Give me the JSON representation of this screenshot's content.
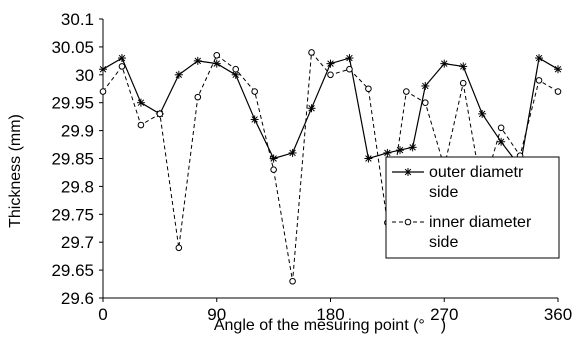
{
  "chart_data": {
    "type": "line",
    "title": "",
    "xlabel": "Angle of the mesuring point (°　)",
    "ylabel": "Thickness (mm)",
    "xlim": [
      0,
      360
    ],
    "ylim": [
      29.6,
      30.1
    ],
    "xticks": [
      "0",
      "90",
      "180",
      "270",
      "360"
    ],
    "yticks": [
      "29.6",
      "29.65",
      "29.7",
      "29.75",
      "29.8",
      "29.85",
      "29.9",
      "29.95",
      "30",
      "30.05",
      "30.1"
    ],
    "grid": false,
    "legend_position": "lower-right",
    "series": [
      {
        "name": "outer diametr side",
        "line_style": "solid",
        "marker": "asterisk",
        "color": "#000000",
        "x": [
          0,
          15,
          30,
          45,
          60,
          75,
          90,
          105,
          120,
          135,
          150,
          165,
          180,
          195,
          210,
          225,
          235,
          245,
          255,
          270,
          285,
          300,
          315,
          330,
          345,
          360
        ],
        "y": [
          30.01,
          30.03,
          29.95,
          29.93,
          30.0,
          30.025,
          30.02,
          30.0,
          29.92,
          29.85,
          29.86,
          29.94,
          30.02,
          30.03,
          29.85,
          29.86,
          29.865,
          29.87,
          29.98,
          30.02,
          30.015,
          29.93,
          29.88,
          29.835,
          30.03,
          30.01
        ]
      },
      {
        "name": "inner diameter side",
        "line_style": "dashed",
        "marker": "open-circle",
        "color": "#000000",
        "x": [
          0,
          15,
          30,
          45,
          60,
          75,
          90,
          105,
          120,
          135,
          150,
          165,
          180,
          195,
          210,
          225,
          240,
          255,
          270,
          285,
          300,
          315,
          330,
          345,
          360
        ],
        "y": [
          29.97,
          30.015,
          29.91,
          29.93,
          29.69,
          29.96,
          30.035,
          30.01,
          29.97,
          29.83,
          29.63,
          30.04,
          30.0,
          30.01,
          29.975,
          29.735,
          29.97,
          29.95,
          29.835,
          29.985,
          29.79,
          29.905,
          29.855,
          29.99,
          29.97
        ]
      }
    ]
  }
}
